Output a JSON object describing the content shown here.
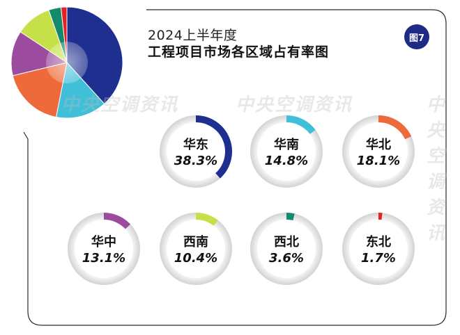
{
  "header": {
    "title_line1": "2024上半年度",
    "title_line2": "工程项目市场各区域占有率图",
    "figure_badge": "图7"
  },
  "watermarks": [
    "中央空调资讯",
    "中央空调资讯",
    "中央空调资讯"
  ],
  "chart_data": [
    {
      "type": "pie",
      "title": "",
      "categories": [
        "华东",
        "华南",
        "华北",
        "华中",
        "西南",
        "西北",
        "东北"
      ],
      "values": [
        38.3,
        14.8,
        18.1,
        13.1,
        10.4,
        3.6,
        1.7
      ],
      "colors": [
        "#1f2f8f",
        "#3fbfd8",
        "#ee6a3a",
        "#9c4c9e",
        "#c6e04a",
        "#138a6c",
        "#e52223"
      ]
    },
    {
      "type": "donut-gauges",
      "items": [
        {
          "name": "华东",
          "label": "38.3%",
          "value": 38.3,
          "color": "#1f2f8f"
        },
        {
          "name": "华南",
          "label": "14.8%",
          "value": 14.8,
          "color": "#3fbfd8"
        },
        {
          "name": "华北",
          "label": "18.1%",
          "value": 18.1,
          "color": "#ee6a3a"
        },
        {
          "name": "华中",
          "label": "13.1%",
          "value": 13.1,
          "color": "#9c4c9e"
        },
        {
          "name": "西南",
          "label": "10.4%",
          "value": 10.4,
          "color": "#c6e04a"
        },
        {
          "name": "西北",
          "label": "3.6%",
          "value": 3.6,
          "color": "#138a6c"
        },
        {
          "name": "东北",
          "label": "1.7%",
          "value": 1.7,
          "color": "#e52223"
        }
      ]
    }
  ]
}
